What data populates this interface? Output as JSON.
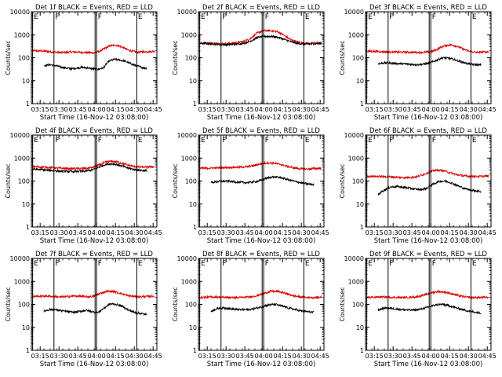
{
  "figure": {
    "colors": {
      "events": "#000000",
      "lld": "#dd0000",
      "axes": "#000000",
      "background": "#ffffff"
    },
    "y_ticks": [
      {
        "value": 1,
        "label": "1"
      },
      {
        "value": 10,
        "label": "10"
      },
      {
        "value": 100,
        "label": "100"
      },
      {
        "value": 1000,
        "label": "1000"
      },
      {
        "value": 10000,
        "label": "10000"
      }
    ],
    "x_ticks": [
      "03:15",
      "03:30",
      "03:45",
      "04:00",
      "04:15",
      "04:30",
      "04:45"
    ],
    "x_tick_minutes": [
      195,
      210,
      225,
      240,
      255,
      270,
      285
    ]
  },
  "chart_data": [
    {
      "type": "line",
      "title": "Det 1f BLACK = Events, RED = LLD",
      "xlabel": "Start Time (16-Nov-12 03:08:00)",
      "ylabel": "Counts/sec",
      "ylim": [
        1,
        10000
      ],
      "yscale": "log",
      "xlim": [
        "03:08",
        "04:48"
      ],
      "markers": [
        {
          "label": "E",
          "time": "03:09"
        },
        {
          "label": "F",
          "time": "03:26"
        },
        {
          "label": "F",
          "time": "04:00"
        },
        {
          "label": "E",
          "time": "04:32"
        }
      ],
      "series": [
        {
          "name": "RED = LLD",
          "color": "#dd0000",
          "x_range": [
            "03:09",
            "04:46"
          ],
          "values": [
            200,
            200,
            195,
            185,
            175,
            168,
            172,
            178,
            176,
            172,
            168,
            165,
            185,
            250,
            330,
            360,
            300,
            230,
            190,
            175,
            180,
            185,
            190
          ]
        },
        {
          "name": "BLACK = Events",
          "color": "#000000",
          "x_range": [
            "03:18",
            "04:40"
          ],
          "values": [
            45,
            50,
            46,
            40,
            36,
            33,
            35,
            38,
            36,
            33,
            31,
            36,
            70,
            85,
            80,
            70,
            55,
            45,
            38,
            35
          ]
        }
      ]
    },
    {
      "type": "line",
      "title": "Det 2f BLACK = Events, RED = LLD",
      "xlabel": "Start Time (16-Nov-12 03:08:00)",
      "ylabel": "Counts/sec",
      "ylim": [
        1,
        10000
      ],
      "yscale": "log",
      "xlim": [
        "03:08",
        "04:48"
      ],
      "markers": [
        {
          "label": "E",
          "time": "03:09"
        },
        {
          "label": "F",
          "time": "03:26"
        },
        {
          "label": "F",
          "time": "04:00"
        },
        {
          "label": "E",
          "time": "04:32"
        }
      ],
      "series": [
        {
          "name": "RED = LLD",
          "color": "#dd0000",
          "x_range": [
            "03:09",
            "04:46"
          ],
          "values": [
            430,
            430,
            420,
            415,
            410,
            420,
            460,
            520,
            700,
            1200,
            1500,
            1500,
            1400,
            1000,
            650,
            500,
            440,
            420,
            430,
            450
          ]
        },
        {
          "name": "BLACK = Events",
          "color": "#000000",
          "x_range": [
            "03:09",
            "04:46"
          ],
          "values": [
            420,
            420,
            400,
            380,
            370,
            380,
            400,
            430,
            540,
            750,
            850,
            850,
            800,
            650,
            520,
            430,
            400,
            390,
            410,
            420
          ]
        }
      ]
    },
    {
      "type": "line",
      "title": "Det 3f BLACK = Events, RED = LLD",
      "xlabel": "Start Time (16-Nov-12 03:08:00)",
      "ylabel": "Counts/sec",
      "ylim": [
        1,
        10000
      ],
      "yscale": "log",
      "xlim": [
        "03:08",
        "04:48"
      ],
      "markers": [
        {
          "label": "E",
          "time": "03:09"
        },
        {
          "label": "F",
          "time": "03:26"
        },
        {
          "label": "F",
          "time": "04:00"
        },
        {
          "label": "E",
          "time": "04:32"
        }
      ],
      "series": [
        {
          "name": "RED = LLD",
          "color": "#dd0000",
          "x_range": [
            "03:09",
            "04:46"
          ],
          "values": [
            190,
            190,
            185,
            180,
            178,
            176,
            174,
            172,
            170,
            172,
            180,
            230,
            320,
            370,
            320,
            240,
            190,
            170,
            175,
            180
          ]
        },
        {
          "name": "BLACK = Events",
          "color": "#000000",
          "x_range": [
            "03:18",
            "04:40"
          ],
          "values": [
            55,
            60,
            58,
            56,
            54,
            52,
            50,
            52,
            58,
            75,
            100,
            95,
            80,
            65,
            55,
            50,
            48
          ]
        }
      ]
    },
    {
      "type": "line",
      "title": "Det 4f BLACK = Events, RED = LLD",
      "xlabel": "Start Time (16-Nov-12 03:08:00)",
      "ylabel": "Counts/sec",
      "ylim": [
        1,
        10000
      ],
      "yscale": "log",
      "xlim": [
        "03:08",
        "04:48"
      ],
      "markers": [
        {
          "label": "E",
          "time": "03:09"
        },
        {
          "label": "F",
          "time": "03:26"
        },
        {
          "label": "F",
          "time": "04:00"
        },
        {
          "label": "E",
          "time": "04:32"
        }
      ],
      "series": [
        {
          "name": "RED = LLD",
          "color": "#dd0000",
          "x_range": [
            "03:09",
            "04:46"
          ],
          "values": [
            420,
            410,
            400,
            380,
            360,
            350,
            345,
            350,
            360,
            400,
            520,
            700,
            720,
            620,
            500,
            430,
            400,
            410,
            420
          ]
        },
        {
          "name": "BLACK = Events",
          "color": "#000000",
          "x_range": [
            "03:09",
            "04:40"
          ],
          "values": [
            330,
            320,
            300,
            285,
            270,
            262,
            258,
            262,
            275,
            310,
            420,
            540,
            560,
            480,
            380,
            320,
            290,
            280
          ]
        }
      ]
    },
    {
      "type": "line",
      "title": "Det 5f BLACK = Events, RED = LLD",
      "xlabel": "Start Time (16-Nov-12 03:08:00)",
      "ylabel": "Counts/sec",
      "ylim": [
        1,
        10000
      ],
      "yscale": "log",
      "xlim": [
        "03:08",
        "04:48"
      ],
      "markers": [
        {
          "label": "E",
          "time": "03:09"
        },
        {
          "label": "F",
          "time": "03:26"
        },
        {
          "label": "F",
          "time": "04:00"
        },
        {
          "label": "E",
          "time": "04:32"
        }
      ],
      "series": [
        {
          "name": "RED = LLD",
          "color": "#dd0000",
          "x_range": [
            "03:09",
            "04:46"
          ],
          "values": [
            360,
            360,
            370,
            380,
            390,
            395,
            400,
            420,
            470,
            560,
            620,
            600,
            520,
            430,
            370,
            340,
            330,
            350,
            360
          ]
        },
        {
          "name": "BLACK = Events",
          "color": "#000000",
          "x_range": [
            "03:18",
            "04:40"
          ],
          "values": [
            85,
            95,
            100,
            95,
            88,
            85,
            90,
            100,
            130,
            150,
            145,
            120,
            100,
            85,
            75,
            70
          ]
        }
      ]
    },
    {
      "type": "line",
      "title": "Det 6f BLACK = Events, RED = LLD",
      "xlabel": "Start Time (16-Nov-12 03:08:00)",
      "ylabel": "Counts/sec",
      "ylim": [
        1,
        10000
      ],
      "yscale": "log",
      "xlim": [
        "03:08",
        "04:48"
      ],
      "markers": [
        {
          "label": "E",
          "time": "03:09"
        },
        {
          "label": "F",
          "time": "03:26"
        },
        {
          "label": "F",
          "time": "04:00"
        },
        {
          "label": "E",
          "time": "04:32"
        }
      ],
      "series": [
        {
          "name": "RED = LLD",
          "color": "#dd0000",
          "x_range": [
            "03:09",
            "04:46"
          ],
          "values": [
            160,
            160,
            158,
            155,
            150,
            145,
            140,
            145,
            160,
            200,
            260,
            300,
            280,
            230,
            190,
            170,
            160,
            158,
            160,
            165
          ]
        },
        {
          "name": "BLACK = Events",
          "color": "#000000",
          "x_range": [
            "03:18",
            "04:40"
          ],
          "values": [
            25,
            40,
            55,
            58,
            54,
            50,
            45,
            42,
            48,
            70,
            95,
            100,
            85,
            65,
            50,
            42,
            38,
            35
          ]
        }
      ]
    },
    {
      "type": "line",
      "title": "Det 7f BLACK = Events, RED = LLD",
      "xlabel": "Start Time (16-Nov-12 03:08:00)",
      "ylabel": "Counts/sec",
      "ylim": [
        1,
        10000
      ],
      "yscale": "log",
      "xlim": [
        "03:08",
        "04:48"
      ],
      "markers": [
        {
          "label": "E",
          "time": "03:09"
        },
        {
          "label": "F",
          "time": "03:26"
        },
        {
          "label": "F",
          "time": "04:00"
        },
        {
          "label": "E",
          "time": "04:32"
        }
      ],
      "series": [
        {
          "name": "RED = LLD",
          "color": "#dd0000",
          "x_range": [
            "03:09",
            "04:46"
          ],
          "values": [
            220,
            225,
            230,
            220,
            210,
            215,
            230,
            225,
            215,
            220,
            300,
            370,
            360,
            300,
            240,
            220,
            215,
            220,
            230
          ]
        },
        {
          "name": "BLACK = Events",
          "color": "#000000",
          "x_range": [
            "03:18",
            "04:40"
          ],
          "values": [
            50,
            60,
            58,
            52,
            48,
            45,
            50,
            55,
            48,
            44,
            70,
            105,
            100,
            80,
            55,
            45,
            40,
            35
          ]
        }
      ]
    },
    {
      "type": "line",
      "title": "Det 8f BLACK = Events, RED = LLD",
      "xlabel": "Start Time (16-Nov-12 03:08:00)",
      "ylabel": "Counts/sec",
      "ylim": [
        1,
        10000
      ],
      "yscale": "log",
      "xlim": [
        "03:08",
        "04:48"
      ],
      "markers": [
        {
          "label": "E",
          "time": "03:09"
        },
        {
          "label": "F",
          "time": "03:26"
        },
        {
          "label": "F",
          "time": "04:00"
        },
        {
          "label": "E",
          "time": "04:32"
        }
      ],
      "series": [
        {
          "name": "RED = LLD",
          "color": "#dd0000",
          "x_range": [
            "03:09",
            "04:46"
          ],
          "values": [
            200,
            205,
            210,
            205,
            200,
            198,
            200,
            210,
            240,
            300,
            370,
            360,
            300,
            240,
            210,
            200,
            198,
            205
          ]
        },
        {
          "name": "BLACK = Events",
          "color": "#000000",
          "x_range": [
            "03:18",
            "04:40"
          ],
          "values": [
            50,
            65,
            70,
            65,
            60,
            58,
            60,
            68,
            80,
            95,
            100,
            85,
            70,
            60,
            52,
            48,
            45
          ]
        }
      ]
    },
    {
      "type": "line",
      "title": "Det 9f BLACK = Events, RED = LLD",
      "xlabel": "Start Time (16-Nov-12 03:08:00)",
      "ylabel": "Counts/sec",
      "ylim": [
        1,
        10000
      ],
      "yscale": "log",
      "xlim": [
        "03:08",
        "04:48"
      ],
      "markers": [
        {
          "label": "E",
          "time": "03:09"
        },
        {
          "label": "F",
          "time": "03:26"
        },
        {
          "label": "F",
          "time": "04:00"
        },
        {
          "label": "E",
          "time": "04:32"
        }
      ],
      "series": [
        {
          "name": "RED = LLD",
          "color": "#dd0000",
          "x_range": [
            "03:09",
            "04:46"
          ],
          "values": [
            200,
            205,
            210,
            205,
            200,
            198,
            202,
            215,
            250,
            320,
            360,
            340,
            280,
            230,
            205,
            198,
            200,
            205
          ]
        },
        {
          "name": "BLACK = Events",
          "color": "#000000",
          "x_range": [
            "03:18",
            "04:40"
          ],
          "values": [
            55,
            70,
            68,
            62,
            58,
            56,
            58,
            65,
            78,
            95,
            100,
            88,
            72,
            60,
            52,
            46,
            42
          ]
        }
      ]
    }
  ]
}
